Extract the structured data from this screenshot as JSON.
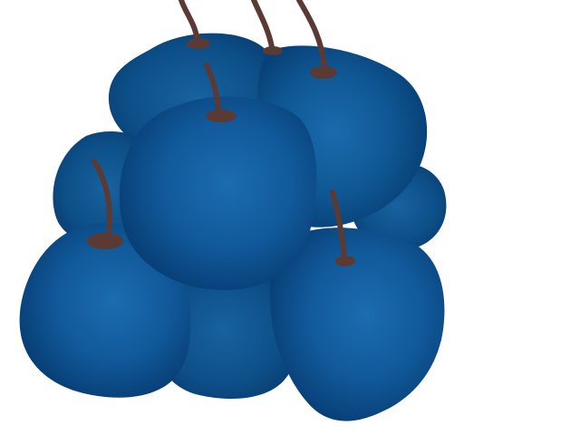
{
  "image": {
    "subject": "plums",
    "count": 8,
    "colors": {
      "background": "#ffffff",
      "fruit_dark": "#063a70",
      "fruit_mid": "#0f5793",
      "fruit_light": "#1a6aad",
      "stem": "#5a3a33",
      "stem_dark": "#4a2e29"
    }
  }
}
